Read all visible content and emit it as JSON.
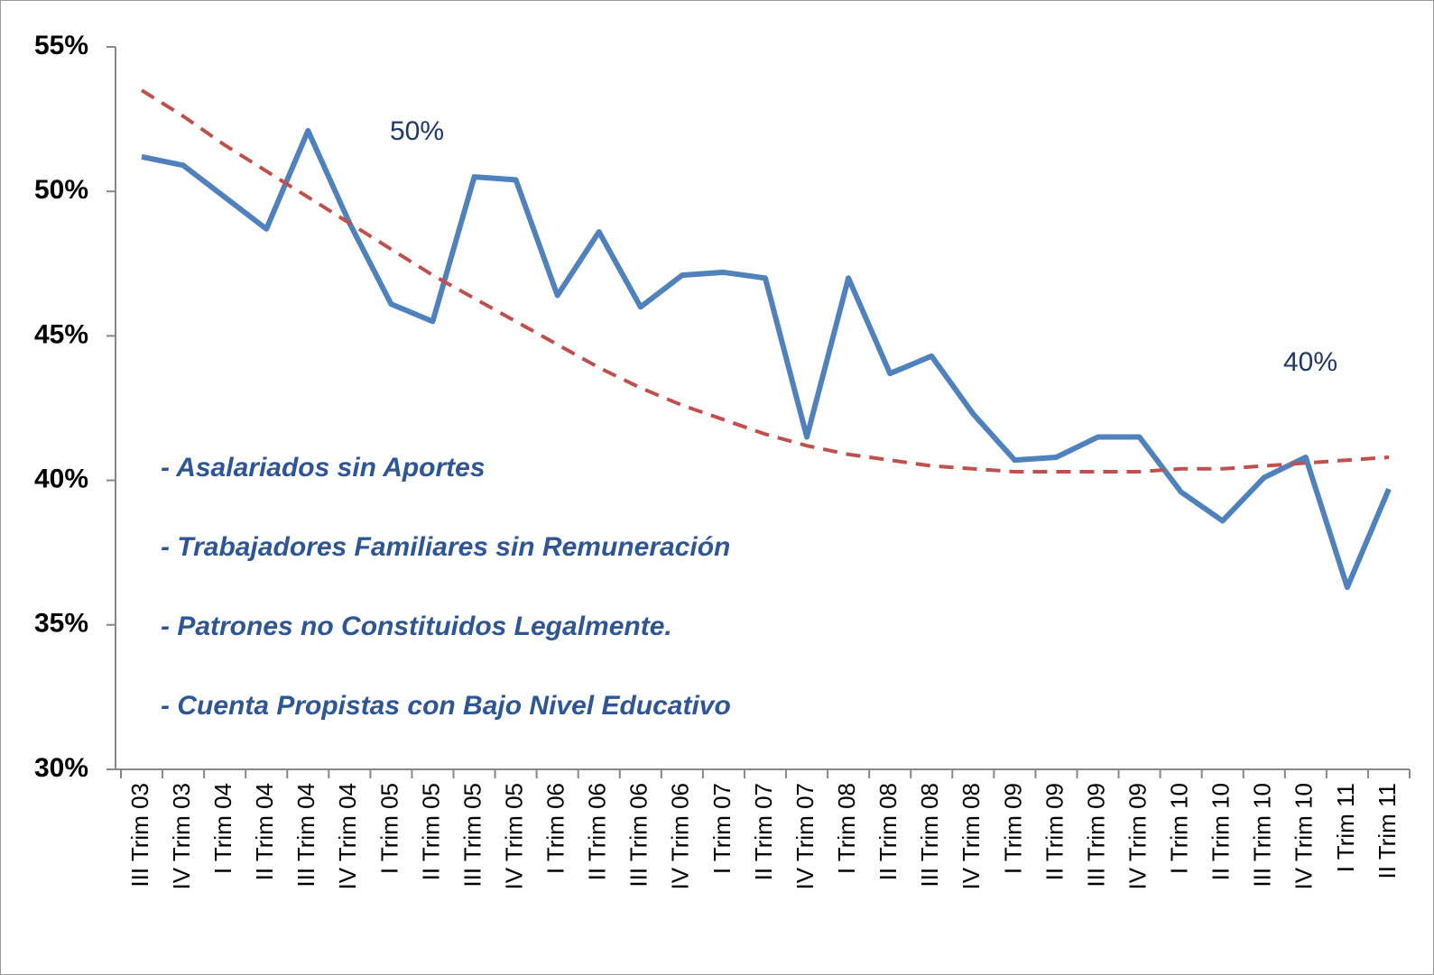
{
  "chart_data": {
    "type": "line",
    "categories": [
      "III Trim 03",
      "IV Trim 03",
      "I Trim 04",
      "II Trim 04",
      "III Trim 04",
      "IV Trim 04",
      "I Trim 05",
      "II Trim 05",
      "III Trim 05",
      "IV Trim 05",
      "I Trim 06",
      "II Trim 06",
      "III Trim 06",
      "IV Trim 06",
      "I Trim 07",
      "II Trim 07",
      "IV Trim 07",
      "I Trim 08",
      "II Trim 08",
      "III Trim 08",
      "IV Trim 08",
      "I Trim 09",
      "II Trim 09",
      "III Trim 09",
      "IV Trim 09",
      "I Trim 10",
      "II Trim 10",
      "III Trim 10",
      "IV Trim 10",
      "I Trim 11",
      "II Trim 11"
    ],
    "series": [
      {
        "color": "#4f81bd",
        "style": "solid",
        "values": [
          51.2,
          50.9,
          49.8,
          48.7,
          52.1,
          48.9,
          46.1,
          45.5,
          50.5,
          50.4,
          46.4,
          48.6,
          46.0,
          47.1,
          47.2,
          47.0,
          41.5,
          47.0,
          43.7,
          44.3,
          42.3,
          40.7,
          40.8,
          41.5,
          41.5,
          39.6,
          38.6,
          40.1,
          40.8,
          36.3,
          39.7
        ]
      },
      {
        "color": "#c0504d",
        "style": "dashed",
        "values": [
          53.5,
          52.6,
          51.6,
          50.7,
          49.8,
          48.9,
          48.0,
          47.1,
          46.3,
          45.5,
          44.7,
          43.9,
          43.2,
          42.6,
          42.1,
          41.6,
          41.2,
          40.9,
          40.7,
          40.5,
          40.4,
          40.3,
          40.3,
          40.3,
          40.3,
          40.4,
          40.4,
          40.5,
          40.6,
          40.7,
          40.8
        ]
      }
    ],
    "ylim": [
      30,
      55
    ],
    "yticks": [
      {
        "value": 30,
        "label": "30%"
      },
      {
        "value": 35,
        "label": "35%"
      },
      {
        "value": 40,
        "label": "40%"
      },
      {
        "value": 45,
        "label": "45%"
      },
      {
        "value": 50,
        "label": "50%"
      },
      {
        "value": 55,
        "label": "55%"
      }
    ],
    "annotations": [
      "50%",
      "40%"
    ],
    "notes": [
      "- Asalariados sin Aportes",
      "- Trabajadores Familiares sin Remuneración",
      "- Patrones no Constituidos Legalmente.",
      "- Cuenta Propistas con Bajo Nivel Educativo"
    ]
  }
}
